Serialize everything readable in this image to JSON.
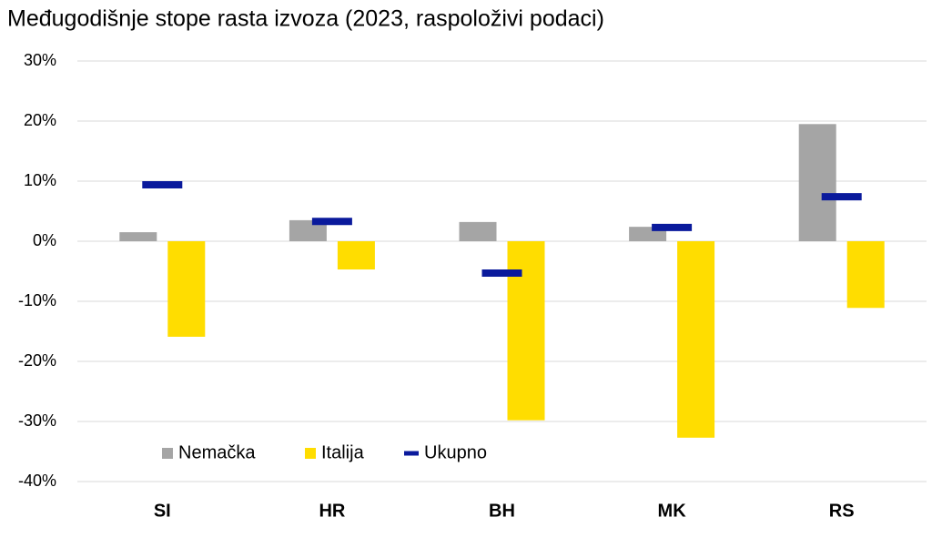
{
  "chart_data": {
    "type": "bar",
    "title": "Međugodišnje stope rasta izvoza (2023, raspoloživi podaci)",
    "categories": [
      "SI",
      "HR",
      "BH",
      "MK",
      "RS"
    ],
    "series": [
      {
        "name": "Nemačka",
        "kind": "bar",
        "color": "#a5a5a5",
        "values": [
          1.5,
          3.5,
          3.2,
          2.4,
          19.5
        ]
      },
      {
        "name": "Italija",
        "kind": "bar",
        "color": "#ffdd00",
        "values": [
          -15.9,
          -4.7,
          -29.8,
          -32.7,
          -11.1
        ]
      },
      {
        "name": "Ukupno",
        "kind": "marker",
        "color": "#0a1a9c",
        "values": [
          9.4,
          3.3,
          -5.3,
          2.3,
          7.4
        ]
      }
    ],
    "ylim": [
      -40,
      30
    ],
    "yticks": [
      {
        "value": -40,
        "label": "-40%"
      },
      {
        "value": -30,
        "label": "-30%"
      },
      {
        "value": -20,
        "label": "-20%"
      },
      {
        "value": -10,
        "label": "-10%"
      },
      {
        "value": 0,
        "label": "0%"
      },
      {
        "value": 10,
        "label": "10%"
      },
      {
        "value": 20,
        "label": "20%"
      },
      {
        "value": 30,
        "label": "30%"
      }
    ],
    "grid": true
  }
}
